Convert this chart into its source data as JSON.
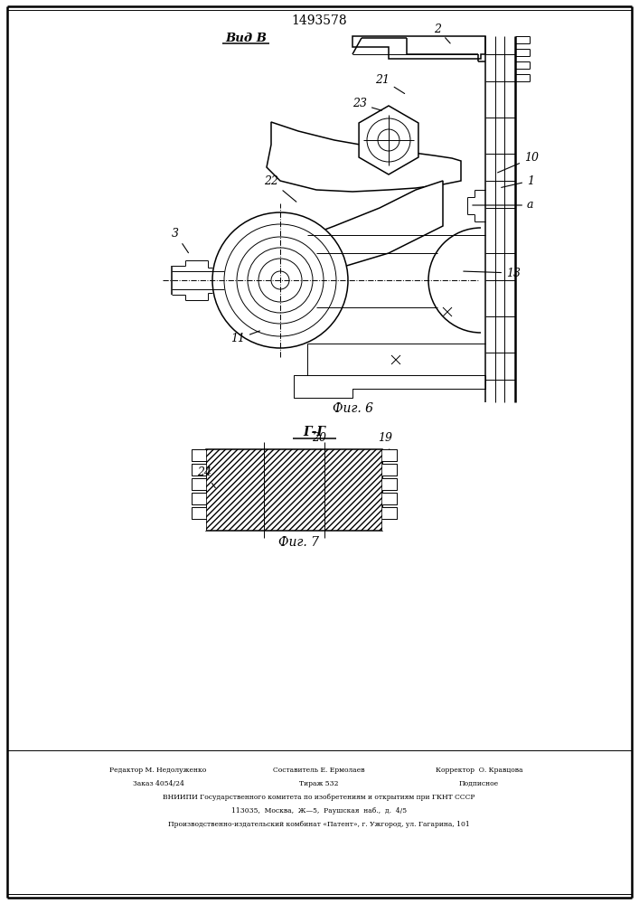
{
  "title": "1493578",
  "fig6_label": "Фиг. 6",
  "fig7_label": "Фиг. 7",
  "view_label": "Вид В",
  "section_label": "Г-Г",
  "footer_lines": [
    [
      "Редактор М. Недолуженко",
      175,
      148
    ],
    [
      "Составитель Е. Ермолаев",
      353,
      148
    ],
    [
      "Корректор  О. Кравцова",
      530,
      148
    ],
    [
      "Заказ 4054/24",
      175,
      133
    ],
    [
      "Тираж 532",
      353,
      133
    ],
    [
      "Подписное",
      530,
      133
    ],
    [
      "ВНИИПИ Государственного комитета по изобретениям и открытиям при ГКНТ СССР",
      353,
      118
    ],
    [
      "113035,  Москва,  Ж—5,  Раушская  наб.,  д.  4/5",
      353,
      103
    ],
    [
      "Производственно-издательский комбинат «Патент», г. Ужгород, ул. Гагарина, 101",
      353,
      88
    ]
  ],
  "bg_color": "#ffffff",
  "line_color": "#000000"
}
